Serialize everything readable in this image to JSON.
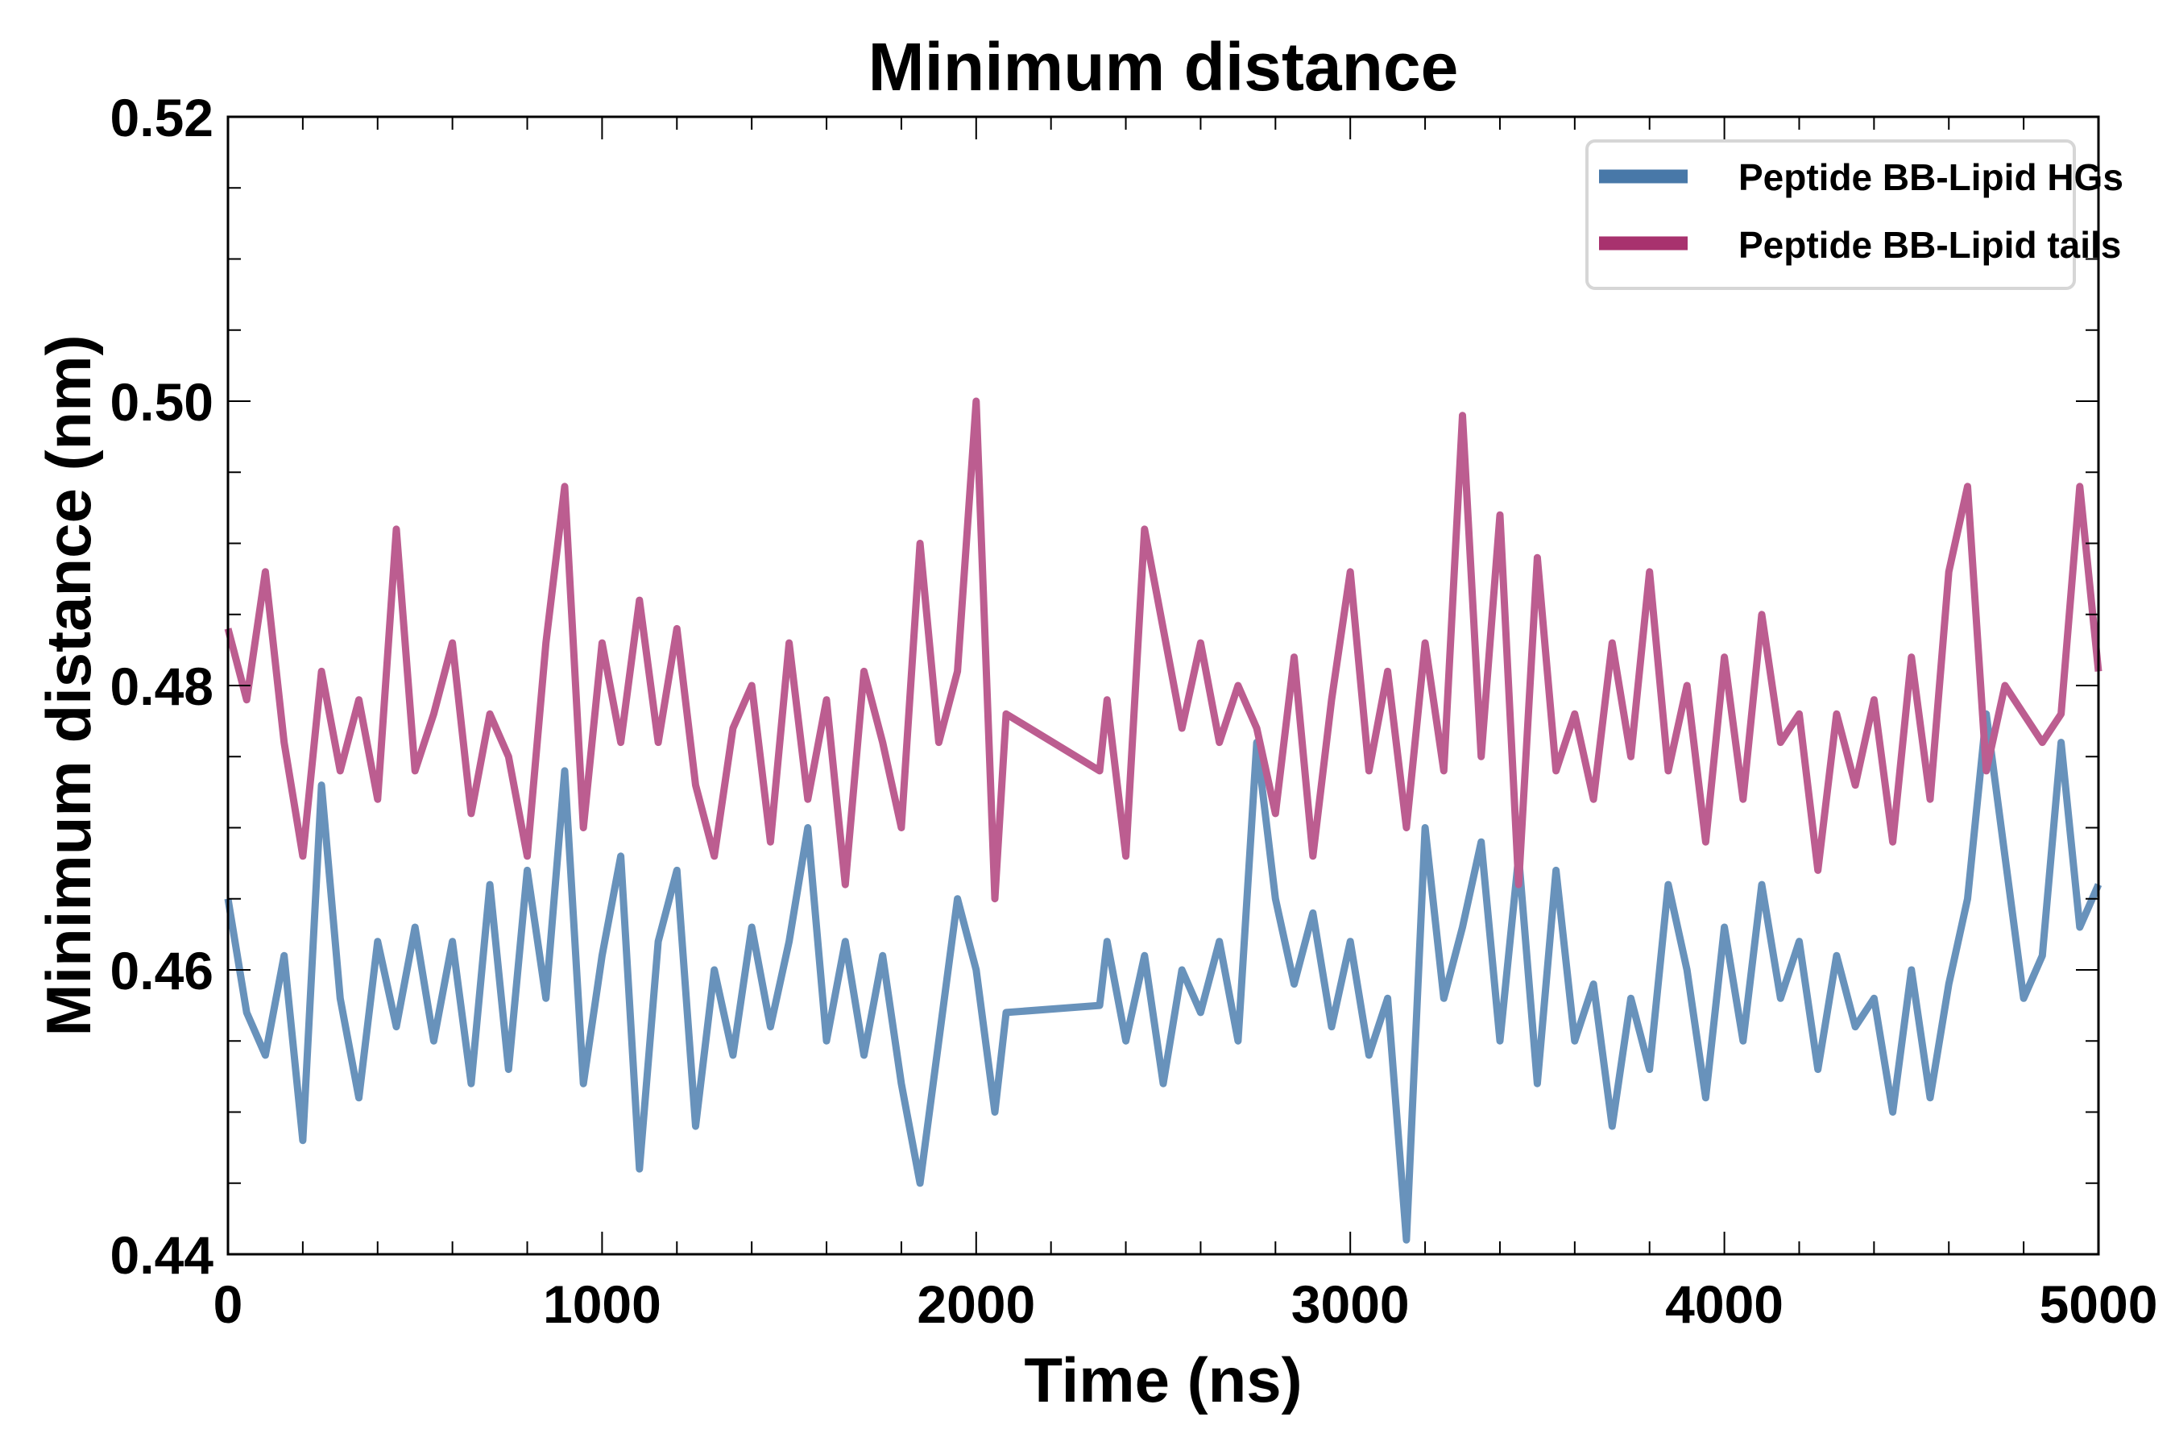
{
  "chart_data": {
    "type": "line",
    "title": "Minimum distance",
    "xlabel": "Time (ns)",
    "ylabel": "Minimum distance (nm)",
    "xlim": [
      0,
      5000
    ],
    "ylim": [
      0.44,
      0.52
    ],
    "xticks": [
      "0",
      "1000",
      "2000",
      "3000",
      "4000",
      "5000"
    ],
    "yticks": [
      "0.44",
      "0.46",
      "0.48",
      "0.50",
      "0.52"
    ],
    "grid": false,
    "legend_position": "top-right",
    "x": [
      0,
      50,
      100,
      150,
      200,
      250,
      300,
      350,
      400,
      450,
      500,
      550,
      600,
      650,
      700,
      750,
      800,
      850,
      900,
      950,
      1000,
      1050,
      1100,
      1150,
      1200,
      1250,
      1300,
      1350,
      1400,
      1450,
      1500,
      1550,
      1600,
      1650,
      1700,
      1750,
      1800,
      1850,
      1900,
      1950,
      2000,
      2050,
      2080,
      2330,
      2350,
      2400,
      2450,
      2500,
      2550,
      2600,
      2650,
      2700,
      2750,
      2800,
      2850,
      2900,
      2950,
      3000,
      3050,
      3100,
      3150,
      3200,
      3250,
      3300,
      3350,
      3400,
      3450,
      3500,
      3550,
      3600,
      3650,
      3700,
      3750,
      3800,
      3850,
      3900,
      3950,
      4000,
      4050,
      4100,
      4150,
      4200,
      4250,
      4300,
      4350,
      4400,
      4450,
      4500,
      4550,
      4600,
      4650,
      4700,
      4750,
      4800,
      4850,
      4900,
      4950,
      5000
    ],
    "series": [
      {
        "name": "Peptide BB-Lipid HGs",
        "color": "#4878a8",
        "values": [
          0.465,
          0.457,
          0.454,
          0.461,
          0.448,
          0.473,
          0.458,
          0.451,
          0.462,
          0.456,
          0.463,
          0.455,
          0.462,
          0.452,
          0.466,
          0.453,
          0.467,
          0.458,
          0.474,
          0.452,
          0.461,
          0.468,
          0.446,
          0.462,
          0.467,
          0.449,
          0.46,
          0.454,
          0.463,
          0.456,
          0.462,
          0.47,
          0.455,
          0.462,
          0.454,
          0.461,
          0.452,
          0.445,
          0.455,
          0.465,
          0.46,
          0.45,
          0.457,
          0.4575,
          0.462,
          0.455,
          0.461,
          0.452,
          0.46,
          0.457,
          0.462,
          0.455,
          0.476,
          0.465,
          0.459,
          0.464,
          0.456,
          0.462,
          0.454,
          0.458,
          0.441,
          0.47,
          0.458,
          0.463,
          0.469,
          0.455,
          0.468,
          0.452,
          0.467,
          0.455,
          0.459,
          0.449,
          0.458,
          0.453,
          0.466,
          0.46,
          0.451,
          0.463,
          0.455,
          0.466,
          0.458,
          0.462,
          0.453,
          0.461,
          0.456,
          0.458,
          0.45,
          0.46,
          0.451,
          0.459,
          0.465,
          0.478,
          0.468,
          0.458,
          0.461,
          0.476,
          0.463,
          0.466
        ]
      },
      {
        "name": "Peptide BB-Lipid tails",
        "color": "#a8326e",
        "values": [
          0.484,
          0.479,
          0.488,
          0.476,
          0.468,
          0.481,
          0.474,
          0.479,
          0.472,
          0.491,
          0.474,
          0.478,
          0.483,
          0.471,
          0.478,
          0.475,
          0.468,
          0.483,
          0.494,
          0.47,
          0.483,
          0.476,
          0.486,
          0.476,
          0.484,
          0.473,
          0.468,
          0.477,
          0.48,
          0.469,
          0.483,
          0.472,
          0.479,
          0.466,
          0.481,
          0.476,
          0.47,
          0.49,
          0.476,
          0.481,
          0.5,
          0.465,
          0.478,
          0.474,
          0.479,
          0.468,
          0.491,
          0.484,
          0.477,
          0.483,
          0.476,
          0.48,
          0.477,
          0.471,
          0.482,
          0.468,
          0.479,
          0.488,
          0.474,
          0.481,
          0.47,
          0.483,
          0.474,
          0.499,
          0.475,
          0.492,
          0.466,
          0.489,
          0.474,
          0.478,
          0.472,
          0.483,
          0.475,
          0.488,
          0.474,
          0.48,
          0.469,
          0.482,
          0.472,
          0.485,
          0.476,
          0.478,
          0.467,
          0.478,
          0.473,
          0.479,
          0.469,
          0.482,
          0.472,
          0.488,
          0.494,
          0.474,
          0.48,
          0.478,
          0.476,
          0.478,
          0.494,
          0.481
        ]
      }
    ]
  }
}
